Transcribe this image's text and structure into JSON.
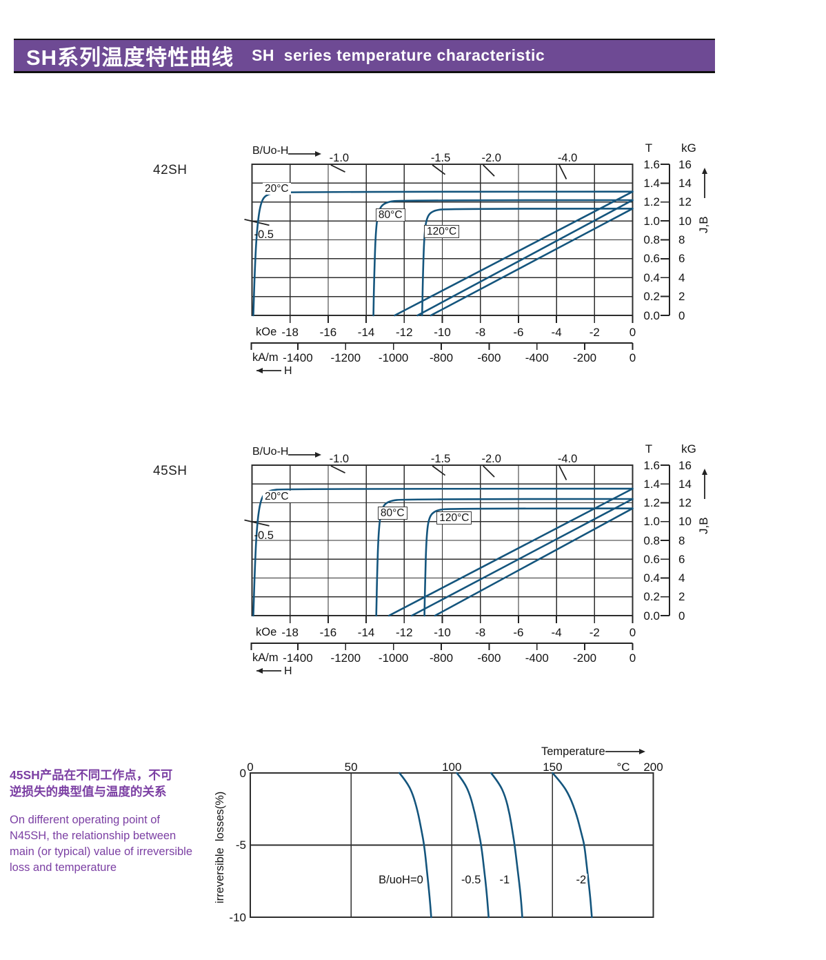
{
  "header": {
    "title_zh": "SH系列温度特性曲线",
    "title_en": "SH  series temperature characteristic"
  },
  "side_note": {
    "zh": "45SH产品在不同工作点，不可\n逆损失的典型值与温度的关系",
    "en": "On different operating point of\nN45SH,  the relationship between\nmain (or typical) value of irreversible\nloss and temperature"
  },
  "colors": {
    "title_bar_bg": "#6e4a94",
    "note_text": "#7b3fa3",
    "curve": "#14557d",
    "grid": "#2d2d2d"
  },
  "chart_data": [
    {
      "type": "line",
      "name": "42SH",
      "corner_label": "B/Uo-H",
      "t_title": "T",
      "kg_title": "kG",
      "jb_label": "J,B",
      "h_label": "H",
      "koe_unit": "kOe",
      "kam_unit": "kA/m",
      "x_range_koe": [
        -20,
        0
      ],
      "y_range_tesla": [
        0,
        1.6
      ],
      "t_ticks": [
        "1.6",
        "1.4",
        "1.2",
        "1.0",
        "0.8",
        "0.6",
        "0.4",
        "0.2",
        "0.0"
      ],
      "kg_ticks": [
        "16",
        "14",
        "12",
        "10",
        "8",
        "6",
        "4",
        "2",
        "0"
      ],
      "koe_ticks": [
        "-18",
        "-16",
        "-14",
        "-12",
        "-10",
        "-8",
        "-6",
        "-4",
        "-2",
        "0"
      ],
      "kam_ticks": [
        "-1400",
        "-1200",
        "-1000",
        "-800",
        "-600",
        "-400",
        "-200",
        "0"
      ],
      "load_lines": [
        {
          "label": "-1.0",
          "ratio": 1.0,
          "edge": "top"
        },
        {
          "label": "-1.5",
          "ratio": 1.5,
          "edge": "top"
        },
        {
          "label": "-2.0",
          "ratio": 2.0,
          "edge": "top"
        },
        {
          "label": "-4.0",
          "ratio": 4.0,
          "edge": "top"
        },
        {
          "label": "-0.5",
          "ratio": 0.5,
          "edge": "left"
        }
      ],
      "curves": [
        {
          "label": "20°C",
          "boxed": false,
          "label_anchor": [
            -19.44,
            1.402
          ],
          "j_points": [
            [
              0,
              1.31
            ],
            [
              -18.2,
              1.31
            ],
            [
              -19.2,
              1.29
            ],
            [
              -19.55,
              1.2
            ],
            [
              -19.75,
              0.9
            ],
            [
              -19.87,
              0.4
            ],
            [
              -19.93,
              0
            ]
          ],
          "b_points": [
            [
              0,
              1.31
            ],
            [
              -12.5,
              0
            ]
          ]
        },
        {
          "label": "80°C",
          "boxed": true,
          "label_anchor": [
            -13.5,
            1.132
          ],
          "j_points": [
            [
              0,
              1.22
            ],
            [
              -12.1,
              1.22
            ],
            [
              -13.0,
              1.2
            ],
            [
              -13.35,
              1.12
            ],
            [
              -13.5,
              0.9
            ],
            [
              -13.58,
              0.4
            ],
            [
              -13.62,
              0
            ]
          ],
          "b_points": [
            [
              0,
              1.22
            ],
            [
              -11.3,
              0
            ]
          ]
        },
        {
          "label": "120°C",
          "boxed": true,
          "label_anchor": [
            -10.96,
            0.957
          ],
          "j_points": [
            [
              0,
              1.13
            ],
            [
              -9.7,
              1.13
            ],
            [
              -10.5,
              1.11
            ],
            [
              -10.82,
              1.04
            ],
            [
              -10.95,
              0.85
            ],
            [
              -11.02,
              0.4
            ],
            [
              -11.06,
              0
            ]
          ],
          "b_points": [
            [
              0,
              1.13
            ],
            [
              -10.6,
              0
            ]
          ]
        }
      ]
    },
    {
      "type": "line",
      "name": "45SH",
      "corner_label": "B/Uo-H",
      "t_title": "T",
      "kg_title": "kG",
      "jb_label": "J,B",
      "h_label": "H",
      "koe_unit": "kOe",
      "kam_unit": "kA/m",
      "x_range_koe": [
        -20,
        0
      ],
      "y_range_tesla": [
        0,
        1.6
      ],
      "t_ticks": [
        "1.6",
        "1.4",
        "1.2",
        "1.0",
        "0.8",
        "0.6",
        "0.4",
        "0.2",
        "0.0"
      ],
      "kg_ticks": [
        "16",
        "14",
        "12",
        "10",
        "8",
        "6",
        "4",
        "2",
        "0"
      ],
      "koe_ticks": [
        "-18",
        "-16",
        "-14",
        "-12",
        "-10",
        "-8",
        "-6",
        "-4",
        "-2",
        "0"
      ],
      "kam_ticks": [
        "-1400",
        "-1200",
        "-1000",
        "-800",
        "-600",
        "-400",
        "-200",
        "0"
      ],
      "load_lines": [
        {
          "label": "-1.0",
          "ratio": 1.0,
          "edge": "top"
        },
        {
          "label": "-1.5",
          "ratio": 1.5,
          "edge": "top"
        },
        {
          "label": "-2.0",
          "ratio": 2.0,
          "edge": "top"
        },
        {
          "label": "-4.0",
          "ratio": 4.0,
          "edge": "top"
        },
        {
          "label": "-0.5",
          "ratio": 0.5,
          "edge": "left"
        }
      ],
      "curves": [
        {
          "label": "20°C",
          "boxed": false,
          "label_anchor": [
            -19.44,
            1.328
          ],
          "j_points": [
            [
              0,
              1.35
            ],
            [
              -18.2,
              1.35
            ],
            [
              -19.2,
              1.33
            ],
            [
              -19.55,
              1.24
            ],
            [
              -19.75,
              0.95
            ],
            [
              -19.87,
              0.4
            ],
            [
              -19.93,
              0
            ]
          ],
          "b_points": [
            [
              0,
              1.35
            ],
            [
              -12.8,
              0
            ]
          ]
        },
        {
          "label": "80°C",
          "boxed": true,
          "label_anchor": [
            -13.39,
            1.16
          ],
          "j_points": [
            [
              0,
              1.24
            ],
            [
              -11.9,
              1.24
            ],
            [
              -12.85,
              1.22
            ],
            [
              -13.2,
              1.14
            ],
            [
              -13.35,
              0.9
            ],
            [
              -13.43,
              0.4
            ],
            [
              -13.47,
              0
            ]
          ],
          "b_points": [
            [
              0,
              1.24
            ],
            [
              -11.6,
              0
            ]
          ]
        },
        {
          "label": "120°C",
          "boxed": true,
          "label_anchor": [
            -10.3,
            1.108
          ],
          "j_points": [
            [
              0,
              1.14
            ],
            [
              -9.6,
              1.14
            ],
            [
              -10.35,
              1.12
            ],
            [
              -10.7,
              1.05
            ],
            [
              -10.83,
              0.85
            ],
            [
              -10.9,
              0.4
            ],
            [
              -10.94,
              0
            ]
          ],
          "b_points": [
            [
              0,
              1.14
            ],
            [
              -10.38,
              0
            ]
          ]
        }
      ]
    },
    {
      "type": "line",
      "name": "irreversible-losses-vs-temperature",
      "top_axis_label": "Temperature",
      "unit_label": "°C",
      "ylabel": "irreversible  losses(%)",
      "x_ticks": [
        "0",
        "50",
        "100",
        "150",
        "200"
      ],
      "x_range": [
        0,
        200
      ],
      "y_ticks": [
        "0",
        "-5",
        "-10"
      ],
      "y_range": [
        -10,
        0
      ],
      "series": [
        {
          "label": "B/uoH=0",
          "label_anchor": [
            63,
            -7.0
          ],
          "points": [
            [
              74,
              0
            ],
            [
              77.5,
              -0.6
            ],
            [
              80.5,
              -1.4
            ],
            [
              83,
              -2.6
            ],
            [
              85,
              -4
            ],
            [
              86.3,
              -5
            ],
            [
              87.7,
              -6.8
            ],
            [
              89,
              -8.6
            ],
            [
              89.8,
              -10
            ]
          ]
        },
        {
          "label": "-0.5",
          "label_anchor": [
            104,
            -7.0
          ],
          "points": [
            [
              102.5,
              0
            ],
            [
              106,
              -0.6
            ],
            [
              109,
              -1.5
            ],
            [
              111.5,
              -2.8
            ],
            [
              113.5,
              -4.2
            ],
            [
              114.6,
              -5
            ],
            [
              116,
              -6.6
            ],
            [
              117.4,
              -8.4
            ],
            [
              118.3,
              -10
            ]
          ]
        },
        {
          "label": "-1",
          "label_anchor": [
            123,
            -7.0
          ],
          "points": [
            [
              119.5,
              0
            ],
            [
              123.5,
              -0.7
            ],
            [
              126.5,
              -1.6
            ],
            [
              128.8,
              -2.9
            ],
            [
              130.3,
              -4.2
            ],
            [
              131.2,
              -5
            ],
            [
              132.7,
              -6.7
            ],
            [
              134.2,
              -8.5
            ],
            [
              135,
              -10
            ]
          ]
        },
        {
          "label": "-2",
          "label_anchor": [
            161,
            -7.0
          ],
          "points": [
            [
              150,
              0
            ],
            [
              154.5,
              -0.7
            ],
            [
              158.5,
              -1.6
            ],
            [
              162,
              -2.9
            ],
            [
              164.5,
              -4.3
            ],
            [
              165.8,
              -5
            ],
            [
              167.3,
              -6.8
            ],
            [
              168.8,
              -8.7
            ],
            [
              169.5,
              -10
            ]
          ]
        }
      ]
    }
  ]
}
